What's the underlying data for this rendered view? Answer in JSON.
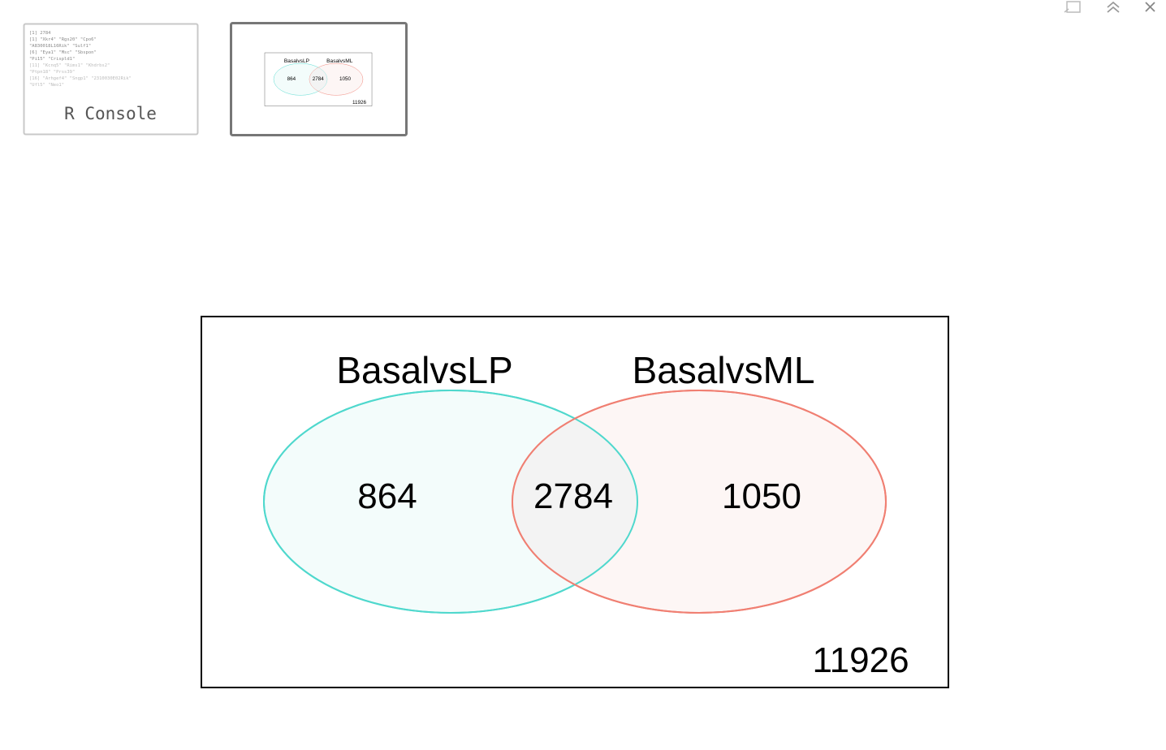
{
  "thumbnails": [
    {
      "label": "R Console",
      "lines": [
        "[1] 2784",
        " [1] \"Xkr4\"          \"Rgs20\"         \"Cpo6\"",
        "\"A830018L16Rik\" \"Sulf1\"",
        " [6] \"Eya1\"          \"Msc\"           \"Sbspon\"",
        "\"Pi15\"          \"Crispld1\"",
        "[11] \"Kcnq5\"         \"Rims1\"         \"Khdrbs2\"",
        "\"Ptpn18\"        \"Prss39\"",
        "[16] \"Arhgef4\"       \"Sngp1\"         \"2310030E02Rik\"",
        "\"Ufl5\"          \"Neo1\""
      ]
    }
  ],
  "venn": {
    "sets": [
      "BasalvsLP",
      "BasalvsML"
    ],
    "left_only": 864,
    "both": 2784,
    "right_only": 1050,
    "neither": 11926
  }
}
